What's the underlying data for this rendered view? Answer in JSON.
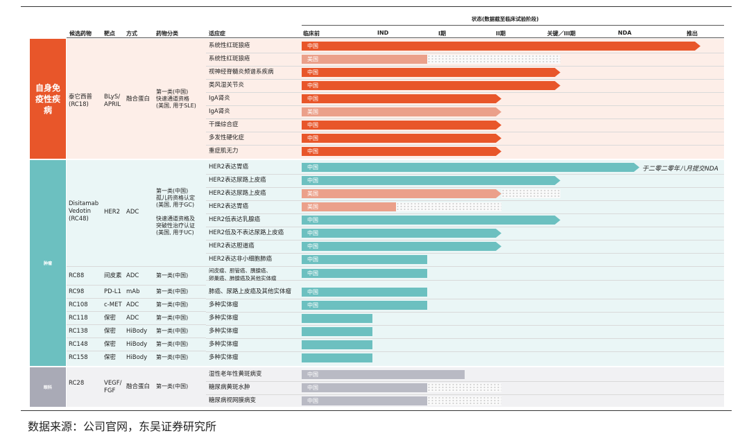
{
  "chart_data": {
    "type": "table",
    "title": "状态(数据截至临床试验阶段)",
    "columns": {
      "drug": "候选药物",
      "target": "靶点",
      "modality": "方式",
      "classification": "药物分类",
      "indication": "适应症"
    },
    "stages": [
      "临床前",
      "IND",
      "I期",
      "II期",
      "关键／III期",
      "NDA",
      "推出"
    ],
    "categories": [
      {
        "label": "自身免疫性疾病",
        "color": "#E8562A"
      },
      {
        "label": "肿瘤",
        "color": "#6CC0C0"
      },
      {
        "label": "眼科",
        "color": "#A9AAB6"
      }
    ],
    "drugs": [
      {
        "name": "泰它西普\n(RC18)",
        "target": "BLyS/\nAPRIL",
        "modality": "融合蛋白",
        "classification": "第一类(中国)\n快速通道资格\n(美国, 用于SLE)"
      },
      {
        "name": "Disitamab\nVedotin\n(RC48)",
        "target": "HER2",
        "modality": "ADC",
        "classification": "第一类(中国)\n孤儿药资格认定\n(美国, 用于GC)\n\n快速通道资格及\n突破性治疗认证\n(美国, 用于UC)"
      },
      {
        "name": "RC88",
        "target": "间皮素",
        "modality": "ADC",
        "classification": "第一类(中国)"
      },
      {
        "name": "RC98",
        "target": "PD-L1",
        "modality": "mAb",
        "classification": "第一类(中国)"
      },
      {
        "name": "RC108",
        "target": "c-MET",
        "modality": "ADC",
        "classification": "第一类(中国)"
      },
      {
        "name": "RC118",
        "target": "保密",
        "modality": "ADC",
        "classification": "第一类(中国)"
      },
      {
        "name": "RC138",
        "target": "保密",
        "modality": "HiBody",
        "classification": "第一类(中国)"
      },
      {
        "name": "RC148",
        "target": "保密",
        "modality": "HiBody",
        "classification": "第一类(中国)"
      },
      {
        "name": "RC158",
        "target": "保密",
        "modality": "HiBody",
        "classification": "第一类(中国)"
      },
      {
        "name": "RC28",
        "target": "VEGF/\nFGF",
        "modality": "融合蛋白",
        "classification": "第一类(中国)"
      }
    ],
    "rows": [
      {
        "indication": "系统性红斑狼疮",
        "region": "中国",
        "stage_end": 6.0,
        "planned_end": null,
        "annotation": ""
      },
      {
        "indication": "系统性红斑狼疮",
        "region": "美国",
        "stage_end": 2.0,
        "planned_end": 4.0,
        "annotation": ""
      },
      {
        "indication": "视神经脊髓炎频谱系疾病",
        "region": "中国",
        "stage_end": 4.0,
        "planned_end": null,
        "annotation": ""
      },
      {
        "indication": "类风湿关节炎",
        "region": "中国",
        "stage_end": 4.0,
        "planned_end": null,
        "annotation": ""
      },
      {
        "indication": "IgA肾炎",
        "region": "中国",
        "stage_end": 3.0,
        "planned_end": null,
        "annotation": ""
      },
      {
        "indication": "IgA肾炎",
        "region": "美国",
        "stage_end": 3.0,
        "planned_end": null,
        "annotation": ""
      },
      {
        "indication": "干燥综合症",
        "region": "中国",
        "stage_end": 3.0,
        "planned_end": null,
        "annotation": ""
      },
      {
        "indication": "多发性硬化症",
        "region": "中国",
        "stage_end": 3.0,
        "planned_end": null,
        "annotation": ""
      },
      {
        "indication": "重症肌无力",
        "region": "中国",
        "stage_end": 3.0,
        "planned_end": null,
        "annotation": ""
      },
      {
        "indication": "HER2表达胃癌",
        "region": "中国",
        "stage_end": 5.2,
        "planned_end": null,
        "annotation": "于二零二零年八月提交NDA"
      },
      {
        "indication": "HER2表达尿路上皮癌",
        "region": "中国",
        "stage_end": 4.0,
        "planned_end": null,
        "annotation": ""
      },
      {
        "indication": "HER2表达尿路上皮癌",
        "region": "美国",
        "stage_end": 3.0,
        "planned_end": 4.0,
        "annotation": ""
      },
      {
        "indication": "HER2表达胃癌",
        "region": "美国",
        "stage_end": 1.5,
        "planned_end": 3.0,
        "annotation": ""
      },
      {
        "indication": "HER2低表达乳腺癌",
        "region": "中国",
        "stage_end": 4.0,
        "planned_end": null,
        "annotation": ""
      },
      {
        "indication": "HER2低及不表达尿路上皮癌",
        "region": "中国",
        "stage_end": 3.0,
        "planned_end": null,
        "annotation": ""
      },
      {
        "indication": "HER2表达胆道癌",
        "region": "中国",
        "stage_end": 3.0,
        "planned_end": null,
        "annotation": ""
      },
      {
        "indication": "HER2表达非小细胞肺癌",
        "region": "中国",
        "stage_end": 2.0,
        "planned_end": null,
        "annotation": ""
      },
      {
        "indication": "间皮瘤、胆管癌、胰腺癌、\n卵巢癌、肺腺癌及其他实体瘤",
        "region": "中国",
        "stage_end": 2.0,
        "planned_end": null,
        "annotation": ""
      },
      {
        "indication": "肺癌、尿路上皮癌及其他实体瘤",
        "region": "中国",
        "stage_end": 2.0,
        "planned_end": null,
        "annotation": ""
      },
      {
        "indication": "多种实体瘤",
        "region": "中国",
        "stage_end": 2.0,
        "planned_end": null,
        "annotation": ""
      },
      {
        "indication": "多种实体瘤",
        "region": "",
        "stage_end": 1.13,
        "planned_end": null,
        "annotation": ""
      },
      {
        "indication": "多种实体瘤",
        "region": "",
        "stage_end": 1.13,
        "planned_end": null,
        "annotation": ""
      },
      {
        "indication": "多种实体瘤",
        "region": "",
        "stage_end": 1.13,
        "planned_end": null,
        "annotation": ""
      },
      {
        "indication": "多种实体瘤",
        "region": "",
        "stage_end": 1.13,
        "planned_end": null,
        "annotation": ""
      },
      {
        "indication": "湿性老年性黄斑病变",
        "region": "中国",
        "stage_end": 2.5,
        "planned_end": null,
        "annotation": ""
      },
      {
        "indication": "糖尿病黄斑水肿",
        "region": "中国",
        "stage_end": 2.0,
        "planned_end": 3.0,
        "annotation": ""
      },
      {
        "indication": "糖尿病视网膜病变",
        "region": "中国",
        "stage_end": 2.0,
        "planned_end": 3.0,
        "annotation": ""
      }
    ]
  },
  "footnote": "数据来源：公司官网，东吴证券研究所"
}
